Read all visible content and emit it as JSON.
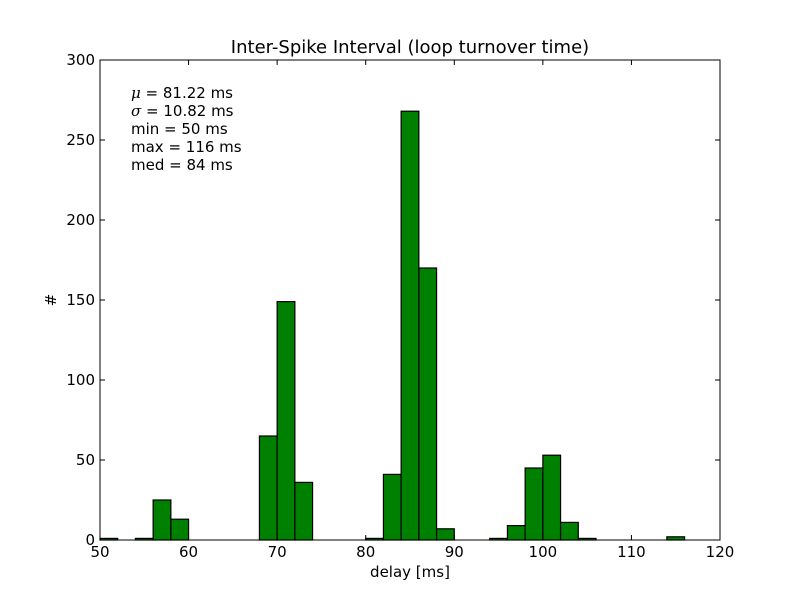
{
  "chart_data": {
    "type": "bar",
    "title": "Inter-Spike Interval (loop turnover time)",
    "xlabel": "delay [ms]",
    "ylabel": "#",
    "xlim": [
      50,
      120
    ],
    "ylim": [
      0,
      300
    ],
    "xticks": [
      "50",
      "60",
      "70",
      "80",
      "90",
      "100",
      "110",
      "120"
    ],
    "yticks": [
      "0",
      "50",
      "100",
      "150",
      "200",
      "250",
      "300"
    ],
    "bin_width": 2,
    "bins": [
      {
        "x": 50,
        "value": 1
      },
      {
        "x": 52,
        "value": 0
      },
      {
        "x": 54,
        "value": 1
      },
      {
        "x": 56,
        "value": 25
      },
      {
        "x": 58,
        "value": 13
      },
      {
        "x": 60,
        "value": 0
      },
      {
        "x": 62,
        "value": 0
      },
      {
        "x": 64,
        "value": 0
      },
      {
        "x": 66,
        "value": 0
      },
      {
        "x": 68,
        "value": 65
      },
      {
        "x": 70,
        "value": 149
      },
      {
        "x": 72,
        "value": 36
      },
      {
        "x": 74,
        "value": 0
      },
      {
        "x": 76,
        "value": 0
      },
      {
        "x": 78,
        "value": 0
      },
      {
        "x": 80,
        "value": 1
      },
      {
        "x": 82,
        "value": 41
      },
      {
        "x": 84,
        "value": 268
      },
      {
        "x": 86,
        "value": 170
      },
      {
        "x": 88,
        "value": 7
      },
      {
        "x": 90,
        "value": 0
      },
      {
        "x": 92,
        "value": 0
      },
      {
        "x": 94,
        "value": 1
      },
      {
        "x": 96,
        "value": 9
      },
      {
        "x": 98,
        "value": 45
      },
      {
        "x": 100,
        "value": 53
      },
      {
        "x": 102,
        "value": 11
      },
      {
        "x": 104,
        "value": 1
      },
      {
        "x": 106,
        "value": 0
      },
      {
        "x": 108,
        "value": 0
      },
      {
        "x": 110,
        "value": 0
      },
      {
        "x": 112,
        "value": 0
      },
      {
        "x": 114,
        "value": 2
      },
      {
        "x": 116,
        "value": 0
      },
      {
        "x": 118,
        "value": 0
      }
    ],
    "bar_color": "#008000",
    "edge_color": "#000000",
    "grid": false,
    "annotations": [
      {
        "symbol": "μ",
        "text": " = 81.22 ms"
      },
      {
        "symbol": "σ",
        "text": " = 10.82 ms"
      },
      {
        "symbol": "",
        "text": "min = 50 ms"
      },
      {
        "symbol": "",
        "text": "max = 116 ms"
      },
      {
        "symbol": "",
        "text": "med = 84 ms"
      }
    ]
  }
}
